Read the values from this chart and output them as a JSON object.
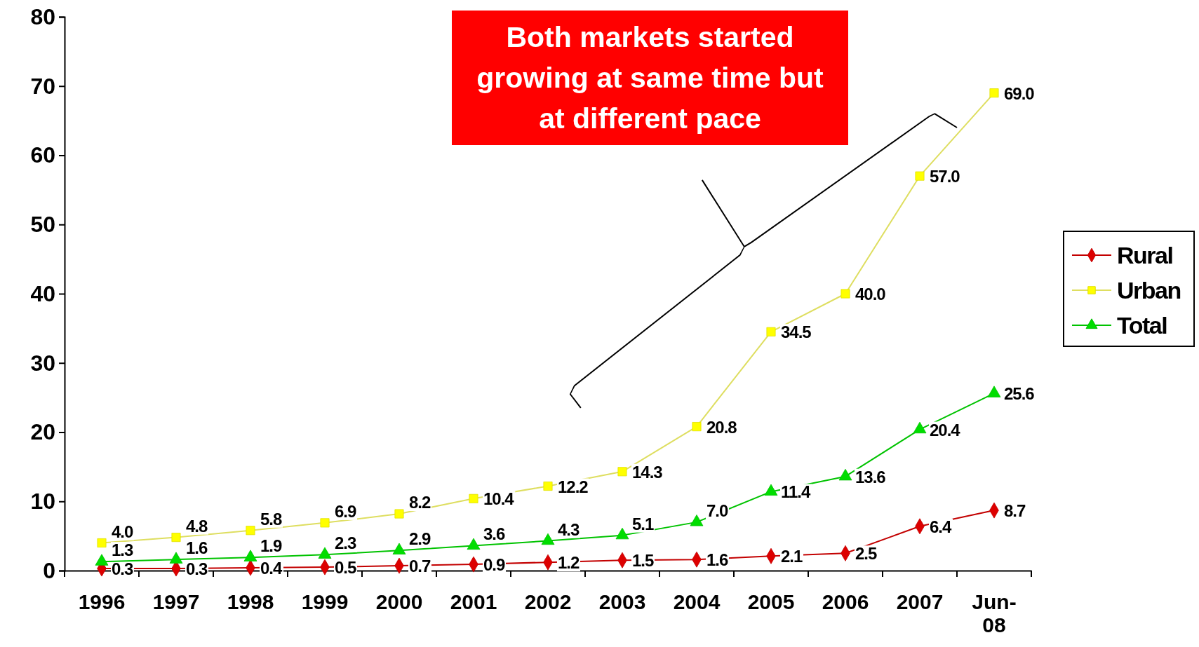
{
  "chart_data": {
    "type": "line",
    "categories": [
      "1996",
      "1997",
      "1998",
      "1999",
      "2000",
      "2001",
      "2002",
      "2003",
      "2004",
      "2005",
      "2006",
      "2007",
      "Jun-08"
    ],
    "series": [
      {
        "name": "Rural",
        "color": "#dd0000",
        "marker": "diamond",
        "values": [
          0.3,
          0.3,
          0.4,
          0.5,
          0.7,
          0.9,
          1.2,
          1.5,
          1.6,
          2.1,
          2.5,
          6.4,
          8.7
        ],
        "value_labels": [
          "0.3",
          "0.3",
          "0.4",
          "0.5",
          "0.7",
          "0.9",
          "1.2",
          "1.5",
          "1.6",
          "2.1",
          "2.5",
          "6.4",
          "8.7"
        ]
      },
      {
        "name": "Urban",
        "color": "#ffff00",
        "marker": "square",
        "values": [
          4.0,
          4.8,
          5.8,
          6.9,
          8.2,
          10.4,
          12.2,
          14.3,
          20.8,
          34.5,
          40.0,
          57.0,
          69.0
        ],
        "value_labels": [
          "4.0",
          "4.8",
          "5.8",
          "6.9",
          "8.2",
          "10.4",
          "12.2",
          "14.3",
          "20.8",
          "34.5",
          "40.0",
          "57.0",
          "69.0"
        ]
      },
      {
        "name": "Total",
        "color": "#00dd00",
        "marker": "triangle",
        "values": [
          1.3,
          1.6,
          1.9,
          2.3,
          2.9,
          3.6,
          4.3,
          5.1,
          7.0,
          11.4,
          13.6,
          20.4,
          25.6
        ],
        "value_labels": [
          "1.3",
          "1.6",
          "1.9",
          "2.3",
          "2.9",
          "3.6",
          "4.3",
          "5.1",
          "7.0",
          "11.4",
          "13.6",
          "20.4",
          "25.6"
        ]
      }
    ],
    "ylim": [
      0,
      80
    ],
    "yticks": [
      0,
      10,
      20,
      30,
      40,
      50,
      60,
      70,
      80
    ],
    "legend": "right",
    "grid": false,
    "line_style": "solid",
    "annotations": [
      "Both markets started growing at same time but at different pace"
    ]
  }
}
